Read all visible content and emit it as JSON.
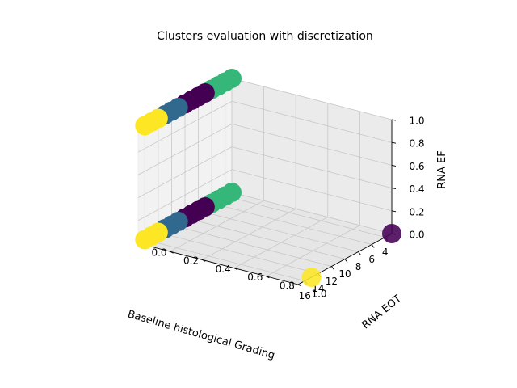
{
  "chart_data": {
    "type": "scatter",
    "projection": "3d",
    "title": "Clusters evaluation with discretization",
    "xlabel": "Baseline histological Grading",
    "ylabel": "RNA EOT",
    "zlabel": "RNA EF",
    "xlim": [
      3,
      17
    ],
    "ylim": [
      0,
      1
    ],
    "zlim": [
      0,
      1
    ],
    "xticks": [
      "4",
      "6",
      "8",
      "10",
      "12",
      "14",
      "16"
    ],
    "yticks": [
      "0.0",
      "0.2",
      "0.4",
      "0.6",
      "0.8",
      "1.0"
    ],
    "zticks": [
      "0.0",
      "0.2",
      "0.4",
      "0.6",
      "0.8",
      "1.0"
    ],
    "grid": true,
    "cluster_colors": [
      "#440154",
      "#31688e",
      "#35b779",
      "#fde725"
    ],
    "points": [
      {
        "x": 3,
        "y": 0,
        "z": 1,
        "cluster": 2
      },
      {
        "x": 4,
        "y": 0,
        "z": 1,
        "cluster": 2
      },
      {
        "x": 5,
        "y": 0,
        "z": 1,
        "cluster": 2
      },
      {
        "x": 6,
        "y": 0,
        "z": 1,
        "cluster": 2
      },
      {
        "x": 7,
        "y": 0,
        "z": 1,
        "cluster": 0
      },
      {
        "x": 8,
        "y": 0,
        "z": 1,
        "cluster": 0
      },
      {
        "x": 9,
        "y": 0,
        "z": 1,
        "cluster": 0
      },
      {
        "x": 10,
        "y": 0,
        "z": 1,
        "cluster": 0
      },
      {
        "x": 11,
        "y": 0,
        "z": 1,
        "cluster": 1
      },
      {
        "x": 12,
        "y": 0,
        "z": 1,
        "cluster": 1
      },
      {
        "x": 13,
        "y": 0,
        "z": 1,
        "cluster": 1
      },
      {
        "x": 14,
        "y": 0,
        "z": 1,
        "cluster": 3
      },
      {
        "x": 15,
        "y": 0,
        "z": 1,
        "cluster": 3
      },
      {
        "x": 16,
        "y": 0,
        "z": 1,
        "cluster": 3
      },
      {
        "x": 3,
        "y": 0,
        "z": 0,
        "cluster": 2
      },
      {
        "x": 4,
        "y": 0,
        "z": 0,
        "cluster": 2
      },
      {
        "x": 5,
        "y": 0,
        "z": 0,
        "cluster": 2
      },
      {
        "x": 6,
        "y": 0,
        "z": 0,
        "cluster": 2
      },
      {
        "x": 7,
        "y": 0,
        "z": 0,
        "cluster": 0
      },
      {
        "x": 8,
        "y": 0,
        "z": 0,
        "cluster": 0
      },
      {
        "x": 9,
        "y": 0,
        "z": 0,
        "cluster": 0
      },
      {
        "x": 10,
        "y": 0,
        "z": 0,
        "cluster": 0
      },
      {
        "x": 11,
        "y": 0,
        "z": 0,
        "cluster": 1
      },
      {
        "x": 12,
        "y": 0,
        "z": 0,
        "cluster": 1
      },
      {
        "x": 13,
        "y": 0,
        "z": 0,
        "cluster": 1
      },
      {
        "x": 14,
        "y": 0,
        "z": 0,
        "cluster": 3
      },
      {
        "x": 15,
        "y": 0,
        "z": 0,
        "cluster": 3
      },
      {
        "x": 16,
        "y": 0,
        "z": 0,
        "cluster": 3
      },
      {
        "x": 3,
        "y": 1,
        "z": 0,
        "cluster": 0
      },
      {
        "x": 15,
        "y": 1,
        "z": 0,
        "cluster": 3
      }
    ]
  }
}
